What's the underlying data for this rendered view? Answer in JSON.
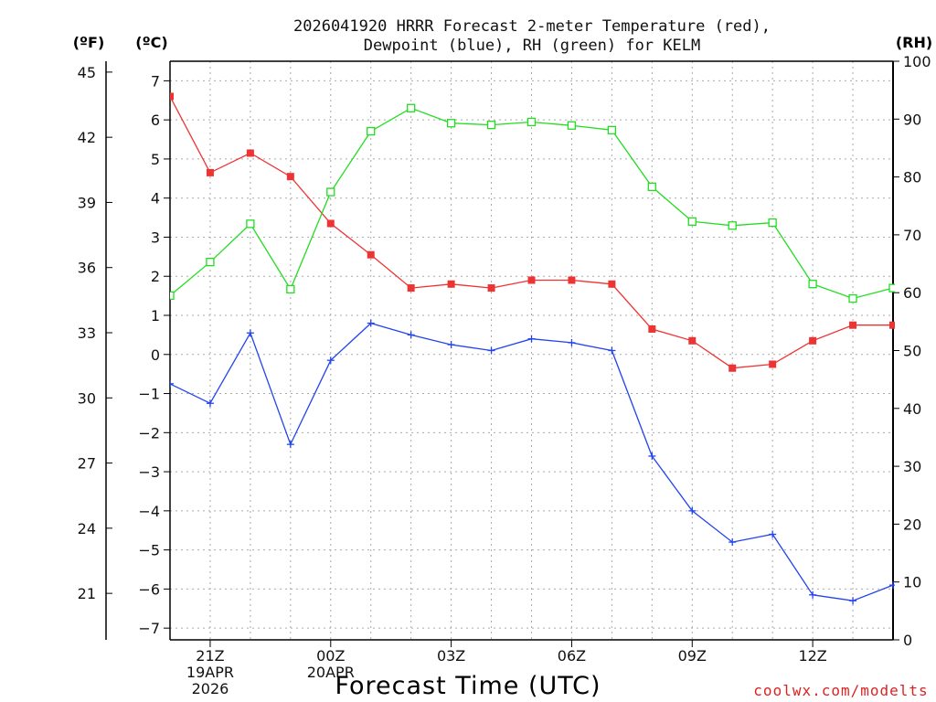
{
  "chart_data": {
    "type": "line",
    "title_line1": "2026041920 HRRR Forecast 2-meter Temperature (red),",
    "title_line2": "Dewpoint (blue), RH (green) for KELM",
    "xlabel": "Forecast Time (UTC)",
    "credit": "coolwx.com/modelts",
    "units": {
      "f": "(ºF)",
      "c": "(ºC)",
      "rh": "(RH)"
    },
    "x_hours": [
      20,
      21,
      22,
      23,
      24,
      25,
      26,
      27,
      28,
      29,
      30,
      31,
      32,
      33,
      34,
      35,
      36,
      37,
      38
    ],
    "x_range": [
      20,
      38
    ],
    "x_ticks": [
      {
        "hour": 21,
        "lines": [
          "21Z",
          "19APR",
          "2026"
        ]
      },
      {
        "hour": 24,
        "lines": [
          "00Z",
          "20APR"
        ]
      },
      {
        "hour": 27,
        "lines": [
          "03Z"
        ]
      },
      {
        "hour": 30,
        "lines": [
          "06Z"
        ]
      },
      {
        "hour": 33,
        "lines": [
          "09Z"
        ]
      },
      {
        "hour": 36,
        "lines": [
          "12Z"
        ]
      }
    ],
    "c_axis": {
      "range": [
        -7.3,
        7.5
      ],
      "ticks": [
        "7",
        "6",
        "5",
        "4",
        "3",
        "2",
        "1",
        "0",
        "−1",
        "−2",
        "−3",
        "−4",
        "−5",
        "−6",
        "−7"
      ]
    },
    "f_axis": {
      "ticks": [
        "45",
        "42",
        "39",
        "36",
        "33",
        "30",
        "27",
        "24",
        "21"
      ]
    },
    "rh_axis": {
      "range": [
        0,
        100
      ],
      "ticks": [
        "100",
        "90",
        "80",
        "70",
        "60",
        "50",
        "40",
        "30",
        "20",
        "10",
        "0"
      ]
    },
    "series": [
      {
        "name": "Temperature",
        "axis": "c",
        "color": "#ee3333",
        "marker": "filled-square",
        "values": [
          6.6,
          4.65,
          5.15,
          4.55,
          3.35,
          2.55,
          1.7,
          1.8,
          1.7,
          1.9,
          1.9,
          1.8,
          0.65,
          0.35,
          -0.35,
          -0.25,
          0.35,
          0.75,
          0.75
        ]
      },
      {
        "name": "Dewpoint",
        "axis": "c",
        "color": "#2244ee",
        "marker": "plus",
        "values": [
          -0.75,
          -1.25,
          0.55,
          -2.3,
          -0.15,
          0.8,
          0.5,
          0.25,
          0.1,
          0.4,
          0.3,
          0.1,
          -2.6,
          -4.0,
          -4.8,
          -4.6,
          -6.15,
          -6.3,
          -5.9
        ]
      },
      {
        "name": "RH",
        "axis": "rh",
        "color": "#22dd22",
        "marker": "open-square",
        "values": [
          59.5,
          65.3,
          71.9,
          60.6,
          77.4,
          87.9,
          91.9,
          89.3,
          89.0,
          89.5,
          88.9,
          88.1,
          78.3,
          72.3,
          71.6,
          72.1,
          61.5,
          59.0,
          60.8
        ]
      }
    ]
  }
}
